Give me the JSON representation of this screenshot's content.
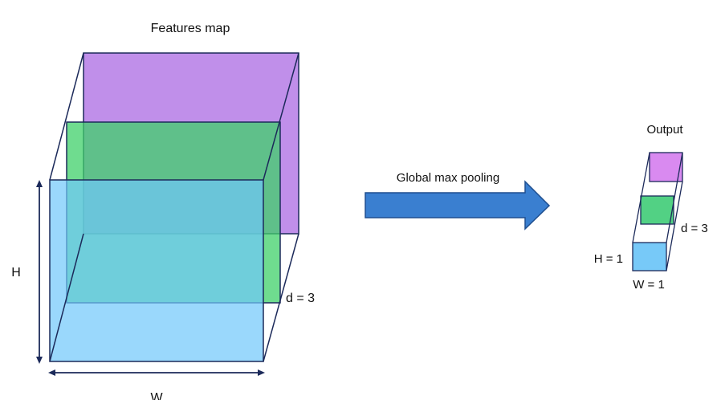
{
  "feature_map": {
    "title": "Features map",
    "height_label": "H",
    "width_label": "W",
    "depth_label": "d = 3"
  },
  "operation": {
    "label": "Global max pooling"
  },
  "output": {
    "title": "Output",
    "height_label": "H = 1",
    "width_label": "W = 1",
    "depth_label": "d = 3"
  },
  "colors": {
    "channel_back": "#b57be6",
    "channel_middle": "#3fd06a",
    "channel_front": "#6fc8fb",
    "arrow_fill": "#3a7fd0",
    "arrow_stroke": "#1f4f8f",
    "edge": "#1c2a5a"
  }
}
